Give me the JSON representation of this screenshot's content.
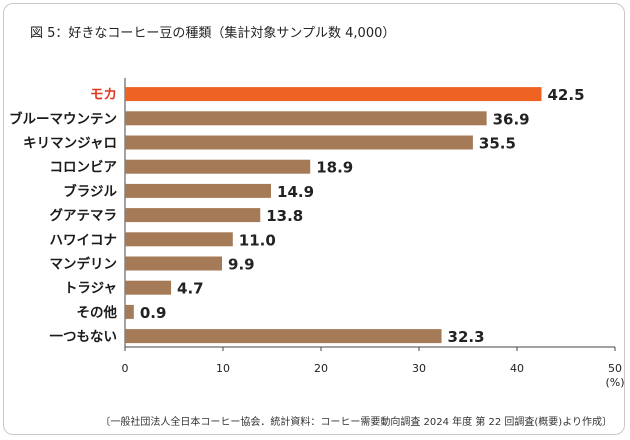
{
  "title": "図 5：好きなコーヒー豆の種類（集計対象サンプル数 4,000）",
  "source": "〔一般社団法人全日本コーヒー協会．統計資料：コーヒー需要動向調査 2024 年度 第 22 回調査(概要)より作成〕",
  "chart_data": {
    "type": "bar",
    "orientation": "horizontal",
    "title": "図 5：好きなコーヒー豆の種類（集計対象サンプル数 4,000）",
    "categories": [
      "モカ",
      "ブルーマウンテン",
      "キリマンジャロ",
      "コロンビア",
      "ブラジル",
      "グアテマラ",
      "ハワイコナ",
      "マンデリン",
      "トラジャ",
      "その他",
      "一つもない"
    ],
    "values": [
      42.5,
      36.9,
      35.5,
      18.9,
      14.9,
      13.8,
      11.0,
      9.9,
      4.7,
      0.9,
      32.3
    ],
    "value_labels": [
      "42.5",
      "36.9",
      "35.5",
      "18.9",
      "14.9",
      "13.8",
      "11.0",
      "9.9",
      "4.7",
      "0.9",
      "32.3"
    ],
    "highlight_index": 0,
    "xlim": [
      0,
      50
    ],
    "xticks": [
      0,
      10,
      20,
      30,
      40,
      50
    ],
    "xlabel": "(%)",
    "grid": false,
    "colors": {
      "bar": "#a47b56",
      "highlight": "#ee6224",
      "highlight_label": "#e03a1e"
    }
  }
}
